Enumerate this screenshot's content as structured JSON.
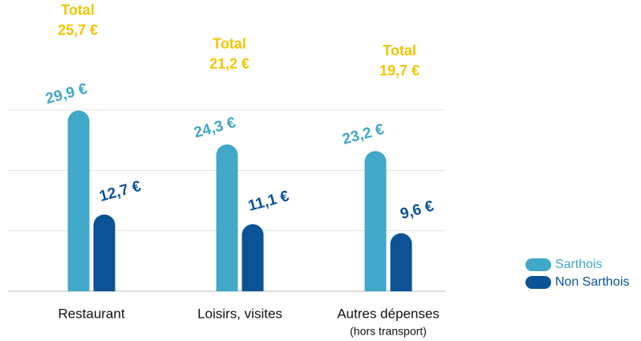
{
  "chart_data": {
    "type": "bar",
    "categories": [
      "Restaurant",
      "Loisirs, visites",
      "Autres dépenses"
    ],
    "category_notes": [
      null,
      null,
      "(hors transport)"
    ],
    "series": [
      {
        "name": "Sarthois",
        "color": "#41a8c8",
        "values": [
          29.9,
          24.3,
          23.2
        ],
        "value_labels": [
          "29,9 €",
          "24,3 €",
          "23,2 €"
        ]
      },
      {
        "name": "Non Sarthois",
        "color": "#0b5296",
        "values": [
          12.7,
          11.1,
          9.6
        ],
        "value_labels": [
          "12,7 €",
          "11,1 €",
          "9,6 €"
        ]
      }
    ],
    "totals_title": "Total",
    "totals": [
      25.7,
      21.2,
      19.7
    ],
    "total_labels": [
      "25,7 €",
      "21,2 €",
      "19,7 €"
    ],
    "ylim": [
      0,
      30
    ],
    "yticks": [
      0,
      10,
      20,
      30
    ],
    "grid": true,
    "legend": "right"
  }
}
